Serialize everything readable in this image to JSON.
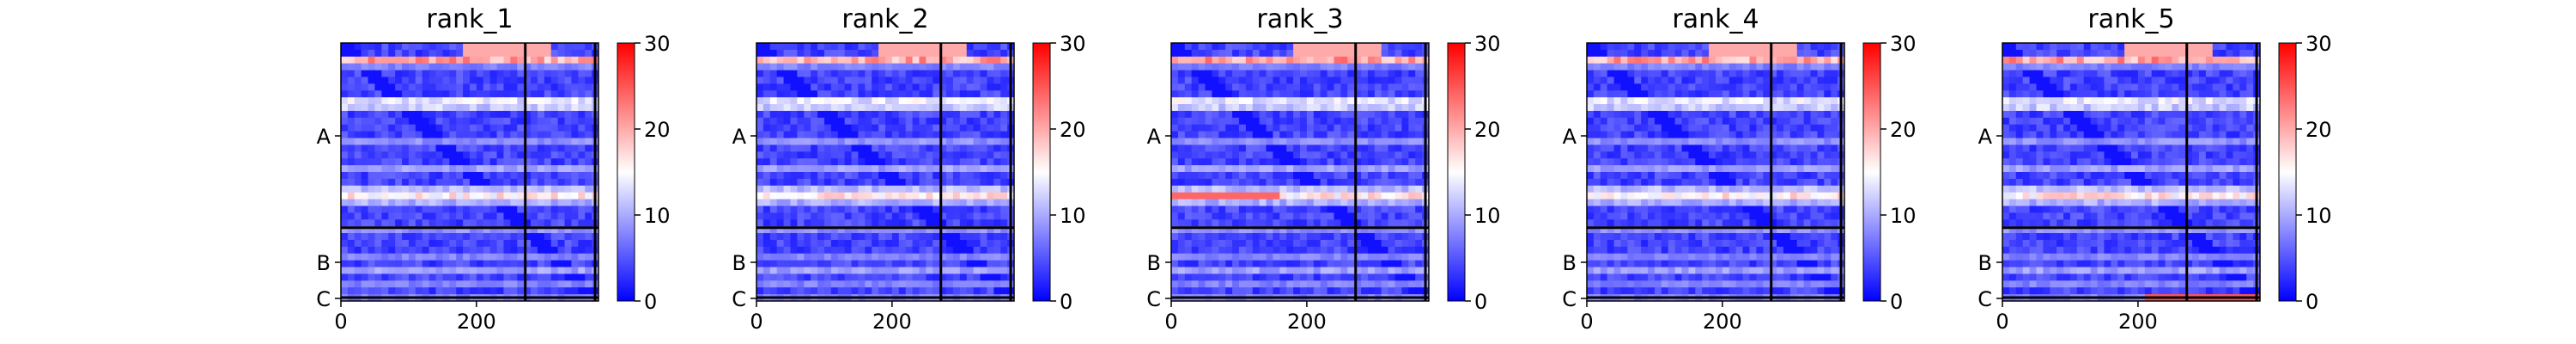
{
  "chart_data": {
    "type": "heatmap",
    "colormap": {
      "low": "#0000ff",
      "mid": "#ffffff",
      "high": "#ff0000"
    },
    "colorbar": {
      "min": 0,
      "max": 30,
      "ticks": [
        0,
        10,
        20,
        30
      ]
    },
    "x_ticks": [
      0,
      200
    ],
    "x_range": [
      0,
      380
    ],
    "chain_breaks": [
      272,
      375
    ],
    "chain_labels": [
      "A",
      "B",
      "C"
    ],
    "panels": [
      {
        "title": "rank_1"
      },
      {
        "title": "rank_2"
      },
      {
        "title": "rank_3"
      },
      {
        "title": "rank_4"
      },
      {
        "title": "rank_5"
      }
    ]
  }
}
